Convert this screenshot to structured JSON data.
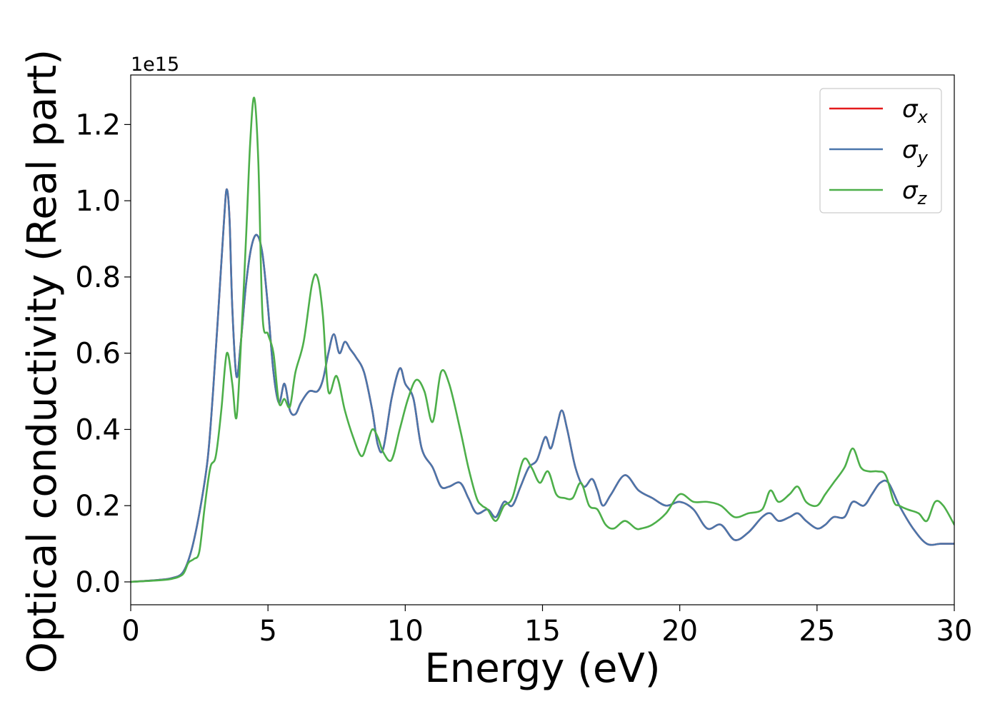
{
  "chart_data": {
    "type": "line",
    "title": "",
    "xlabel": "Energy (eV)",
    "ylabel": "Optical conductivity (Real part)",
    "y_offset_label": "1e15",
    "xlim": [
      0,
      30
    ],
    "ylim": [
      -0.06,
      1.33
    ],
    "xticks": [
      0,
      5,
      10,
      15,
      20,
      25,
      30
    ],
    "xtick_labels": [
      "0",
      "5",
      "10",
      "15",
      "20",
      "25",
      "30"
    ],
    "yticks": [
      0.0,
      0.2,
      0.4,
      0.6,
      0.8,
      1.0,
      1.2
    ],
    "ytick_labels": [
      "0.0",
      "0.2",
      "0.4",
      "0.6",
      "0.8",
      "1.0",
      "1.2"
    ],
    "grid": false,
    "legend_position": "top-right",
    "series": [
      {
        "name": "σx",
        "symbol": "σ",
        "subscript": "x",
        "color": "#e41a1c",
        "x": [
          0,
          1,
          1.5,
          1.9,
          2.2,
          2.5,
          2.8,
          3.0,
          3.2,
          3.4,
          3.5,
          3.6,
          3.7,
          3.85,
          4.0,
          4.2,
          4.4,
          4.6,
          4.8,
          5.0,
          5.2,
          5.4,
          5.6,
          5.8,
          6.0,
          6.2,
          6.5,
          6.8,
          7.0,
          7.2,
          7.4,
          7.6,
          7.8,
          8.0,
          8.2,
          8.5,
          8.8,
          9.0,
          9.2,
          9.5,
          9.8,
          10.0,
          10.3,
          10.6,
          11.0,
          11.3,
          11.6,
          12.0,
          12.3,
          12.6,
          13.0,
          13.3,
          13.6,
          13.9,
          14.2,
          14.5,
          14.8,
          15.1,
          15.3,
          15.5,
          15.7,
          15.9,
          16.2,
          16.5,
          16.8,
          17.0,
          17.2,
          17.5,
          18.0,
          18.5,
          19.0,
          19.5,
          20.0,
          20.5,
          21.0,
          21.5,
          22.0,
          22.5,
          23.0,
          23.3,
          23.6,
          24.0,
          24.3,
          24.6,
          25.0,
          25.3,
          25.6,
          26.0,
          26.3,
          26.7,
          27.0,
          27.3,
          27.6,
          28.0,
          28.5,
          29.0,
          29.5,
          30.0
        ],
        "y": [
          0.0,
          0.005,
          0.01,
          0.025,
          0.08,
          0.18,
          0.32,
          0.5,
          0.72,
          0.95,
          1.03,
          0.95,
          0.72,
          0.54,
          0.62,
          0.78,
          0.88,
          0.91,
          0.86,
          0.72,
          0.55,
          0.47,
          0.52,
          0.45,
          0.44,
          0.47,
          0.5,
          0.5,
          0.53,
          0.6,
          0.65,
          0.6,
          0.63,
          0.61,
          0.59,
          0.55,
          0.45,
          0.36,
          0.35,
          0.48,
          0.56,
          0.52,
          0.48,
          0.35,
          0.3,
          0.25,
          0.25,
          0.26,
          0.22,
          0.18,
          0.19,
          0.17,
          0.21,
          0.2,
          0.25,
          0.3,
          0.32,
          0.38,
          0.35,
          0.4,
          0.45,
          0.4,
          0.3,
          0.25,
          0.27,
          0.24,
          0.2,
          0.23,
          0.28,
          0.24,
          0.22,
          0.2,
          0.21,
          0.19,
          0.14,
          0.15,
          0.11,
          0.13,
          0.17,
          0.18,
          0.16,
          0.17,
          0.18,
          0.16,
          0.14,
          0.15,
          0.17,
          0.17,
          0.21,
          0.2,
          0.23,
          0.26,
          0.26,
          0.2,
          0.14,
          0.1,
          0.1,
          0.1
        ]
      },
      {
        "name": "σy",
        "symbol": "σ",
        "subscript": "y",
        "color": "#4a76ab",
        "x": [
          0,
          1,
          1.5,
          1.9,
          2.2,
          2.5,
          2.8,
          3.0,
          3.2,
          3.4,
          3.5,
          3.6,
          3.7,
          3.85,
          4.0,
          4.2,
          4.4,
          4.6,
          4.8,
          5.0,
          5.2,
          5.4,
          5.6,
          5.8,
          6.0,
          6.2,
          6.5,
          6.8,
          7.0,
          7.2,
          7.4,
          7.6,
          7.8,
          8.0,
          8.2,
          8.5,
          8.8,
          9.0,
          9.2,
          9.5,
          9.8,
          10.0,
          10.3,
          10.6,
          11.0,
          11.3,
          11.6,
          12.0,
          12.3,
          12.6,
          13.0,
          13.3,
          13.6,
          13.9,
          14.2,
          14.5,
          14.8,
          15.1,
          15.3,
          15.5,
          15.7,
          15.9,
          16.2,
          16.5,
          16.8,
          17.0,
          17.2,
          17.5,
          18.0,
          18.5,
          19.0,
          19.5,
          20.0,
          20.5,
          21.0,
          21.5,
          22.0,
          22.5,
          23.0,
          23.3,
          23.6,
          24.0,
          24.3,
          24.6,
          25.0,
          25.3,
          25.6,
          26.0,
          26.3,
          26.7,
          27.0,
          27.3,
          27.6,
          28.0,
          28.5,
          29.0,
          29.5,
          30.0
        ],
        "y": [
          0.0,
          0.005,
          0.01,
          0.025,
          0.08,
          0.18,
          0.32,
          0.5,
          0.72,
          0.95,
          1.03,
          0.95,
          0.72,
          0.54,
          0.62,
          0.78,
          0.88,
          0.91,
          0.86,
          0.72,
          0.55,
          0.47,
          0.52,
          0.45,
          0.44,
          0.47,
          0.5,
          0.5,
          0.53,
          0.6,
          0.65,
          0.6,
          0.63,
          0.61,
          0.59,
          0.55,
          0.45,
          0.36,
          0.35,
          0.48,
          0.56,
          0.52,
          0.48,
          0.35,
          0.3,
          0.25,
          0.25,
          0.26,
          0.22,
          0.18,
          0.19,
          0.17,
          0.21,
          0.2,
          0.25,
          0.3,
          0.32,
          0.38,
          0.35,
          0.4,
          0.45,
          0.4,
          0.3,
          0.25,
          0.27,
          0.24,
          0.2,
          0.23,
          0.28,
          0.24,
          0.22,
          0.2,
          0.21,
          0.19,
          0.14,
          0.15,
          0.11,
          0.13,
          0.17,
          0.18,
          0.16,
          0.17,
          0.18,
          0.16,
          0.14,
          0.15,
          0.17,
          0.17,
          0.21,
          0.2,
          0.23,
          0.26,
          0.26,
          0.2,
          0.14,
          0.1,
          0.1,
          0.1
        ]
      },
      {
        "name": "σz",
        "symbol": "σ",
        "subscript": "z",
        "color": "#4daf4a",
        "x": [
          0,
          1,
          1.5,
          1.9,
          2.1,
          2.3,
          2.5,
          2.7,
          2.9,
          3.1,
          3.3,
          3.5,
          3.7,
          3.85,
          4.0,
          4.2,
          4.35,
          4.5,
          4.65,
          4.8,
          5.0,
          5.2,
          5.4,
          5.6,
          5.8,
          6.0,
          6.3,
          6.6,
          6.8,
          7.0,
          7.2,
          7.5,
          7.8,
          8.1,
          8.4,
          8.6,
          8.8,
          9.0,
          9.2,
          9.5,
          9.8,
          10.1,
          10.4,
          10.7,
          11.0,
          11.3,
          11.6,
          12.0,
          12.3,
          12.6,
          12.8,
          13.0,
          13.3,
          13.6,
          13.9,
          14.3,
          14.6,
          14.9,
          15.2,
          15.5,
          15.8,
          16.1,
          16.4,
          16.7,
          17.0,
          17.3,
          17.6,
          18.0,
          18.4,
          18.6,
          19.0,
          19.5,
          20.0,
          20.5,
          21.0,
          21.5,
          22.0,
          22.5,
          23.0,
          23.3,
          23.6,
          24.0,
          24.3,
          24.6,
          25.0,
          25.3,
          25.6,
          26.0,
          26.3,
          26.6,
          26.9,
          27.2,
          27.5,
          27.8,
          28.0,
          28.3,
          28.7,
          29.0,
          29.3,
          29.6,
          30.0
        ],
        "y": [
          0.0,
          0.004,
          0.008,
          0.02,
          0.05,
          0.06,
          0.08,
          0.2,
          0.3,
          0.33,
          0.45,
          0.6,
          0.52,
          0.43,
          0.6,
          0.9,
          1.15,
          1.27,
          1.1,
          0.7,
          0.65,
          0.6,
          0.47,
          0.48,
          0.46,
          0.55,
          0.63,
          0.78,
          0.8,
          0.7,
          0.5,
          0.54,
          0.45,
          0.38,
          0.33,
          0.36,
          0.4,
          0.38,
          0.34,
          0.32,
          0.4,
          0.48,
          0.53,
          0.5,
          0.42,
          0.55,
          0.52,
          0.4,
          0.3,
          0.22,
          0.2,
          0.19,
          0.16,
          0.2,
          0.22,
          0.32,
          0.3,
          0.26,
          0.29,
          0.23,
          0.22,
          0.22,
          0.26,
          0.2,
          0.19,
          0.15,
          0.14,
          0.16,
          0.14,
          0.14,
          0.15,
          0.18,
          0.23,
          0.21,
          0.21,
          0.2,
          0.17,
          0.18,
          0.19,
          0.24,
          0.21,
          0.23,
          0.25,
          0.21,
          0.2,
          0.23,
          0.26,
          0.3,
          0.35,
          0.3,
          0.29,
          0.29,
          0.28,
          0.21,
          0.2,
          0.19,
          0.18,
          0.16,
          0.21,
          0.2,
          0.15
        ]
      }
    ]
  }
}
